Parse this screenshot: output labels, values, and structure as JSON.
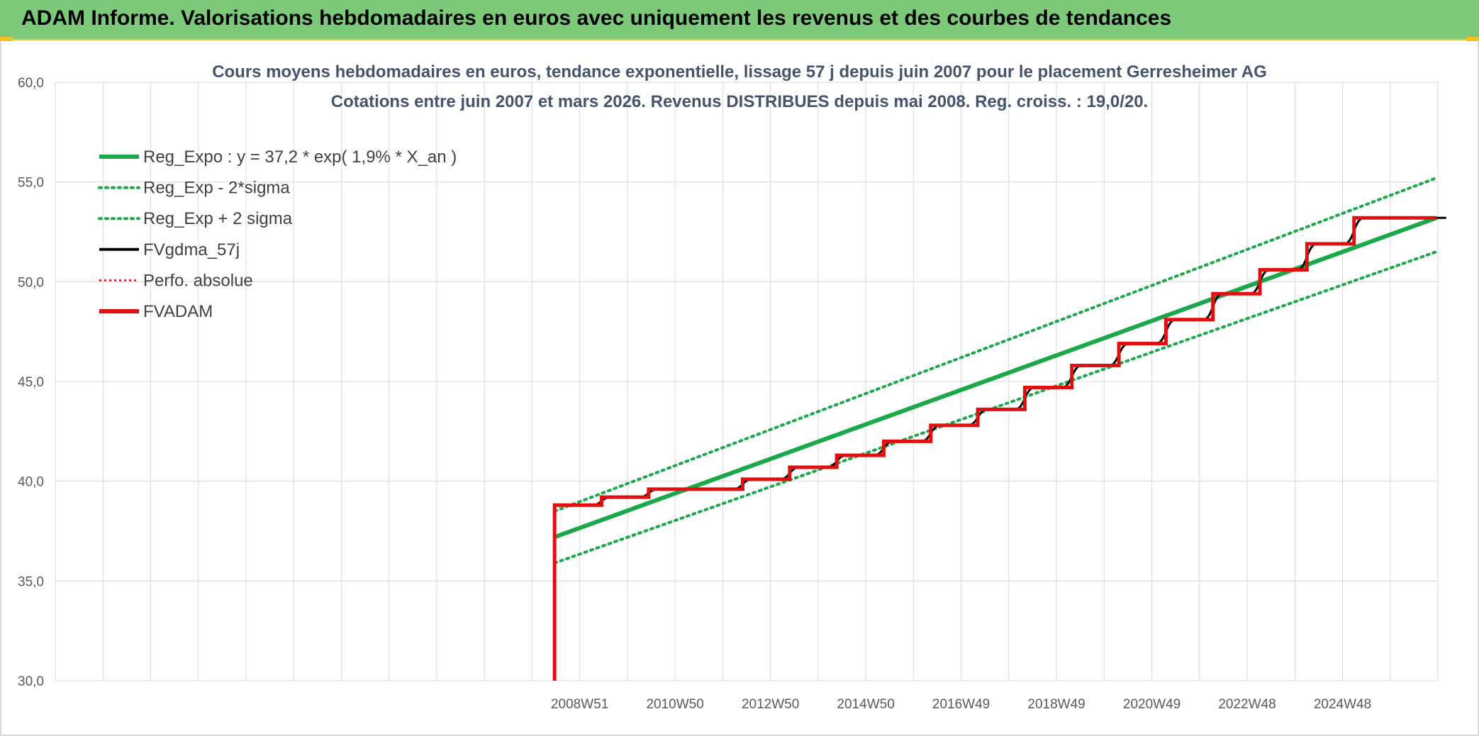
{
  "banner": {
    "title": "ADAM Informe. Valorisations hebdomadaires en euros avec uniquement les revenus et des courbes de tendances"
  },
  "colors": {
    "banner_bg": "#7cc97a",
    "reg_green": "#1aa84a",
    "fvgdma": "#000000",
    "fvadam": "#e01010",
    "perfo": "#e01010",
    "grid": "#d9d9d9",
    "title_text": "#44546a"
  },
  "chart_data": {
    "type": "line",
    "title_lines": [
      "Cours moyens hebdomadaires en euros, tendance exponentielle, lissage 57 j depuis juin 2007 pour le placement Gerresheimer AG",
      "Cotations entre juin 2007 et mars 2026. Revenus DISTRIBUES depuis mai 2008. Reg. croiss. : 19,0/20."
    ],
    "ylim": [
      30,
      60
    ],
    "y_ticks": [
      "30,0",
      "35,0",
      "40,0",
      "45,0",
      "50,0",
      "55,0",
      "60,0"
    ],
    "x_tick_labels": [
      "2008W51",
      "2010W50",
      "2012W50",
      "2014W50",
      "2016W49",
      "2018W49",
      "2020W49",
      "2022W48",
      "2024W48"
    ],
    "grid": true,
    "legend_position": "top-left",
    "legend": [
      {
        "label": "Reg_Expo : y = 37,2 * exp( 1,9% *  X_an )",
        "style": "solid-thick",
        "color": "#1aa84a"
      },
      {
        "label": "Reg_Exp - 2*sigma",
        "style": "dotted",
        "color": "#1aa84a"
      },
      {
        "label": "Reg_Exp + 2 sigma",
        "style": "dotted",
        "color": "#1aa84a"
      },
      {
        "label": "FVgdma_57j",
        "style": "solid",
        "color": "#000000"
      },
      {
        "label": "Perfo. absolue",
        "style": "dotted-thin",
        "color": "#e01010"
      },
      {
        "label": "FVADAM",
        "style": "solid-thick",
        "color": "#e01010"
      }
    ],
    "series": [
      {
        "name": "Reg_Expo : y = 37,2 * exp( 1,9% *  X_an )",
        "x": [
          "2007-06",
          "2026-03"
        ],
        "y": [
          37.2,
          53.2
        ]
      },
      {
        "name": "Reg_Exp - 2*sigma",
        "x": [
          "2007-06",
          "2026-03"
        ],
        "y": [
          35.9,
          51.5
        ]
      },
      {
        "name": "Reg_Exp + 2 sigma",
        "x": [
          "2007-06",
          "2026-03"
        ],
        "y": [
          38.5,
          55.2
        ]
      },
      {
        "name": "FVADAM",
        "x": [
          "2007-06",
          "2007-06",
          "2008-06",
          "2009-06",
          "2011-06",
          "2012-06",
          "2013-06",
          "2014-06",
          "2015-06",
          "2016-06",
          "2017-06",
          "2018-06",
          "2019-06",
          "2020-06",
          "2021-06",
          "2022-06",
          "2023-06",
          "2024-06",
          "2026-03"
        ],
        "y": [
          30.0,
          38.8,
          39.2,
          39.6,
          40.1,
          40.7,
          41.3,
          42.0,
          42.8,
          43.6,
          44.7,
          45.8,
          46.9,
          48.1,
          49.4,
          50.6,
          51.9,
          53.2,
          53.2
        ]
      },
      {
        "name": "FVgdma_57j",
        "x": [
          "2007-06",
          "2026-03"
        ],
        "y": [
          38.8,
          53.2
        ]
      }
    ]
  }
}
